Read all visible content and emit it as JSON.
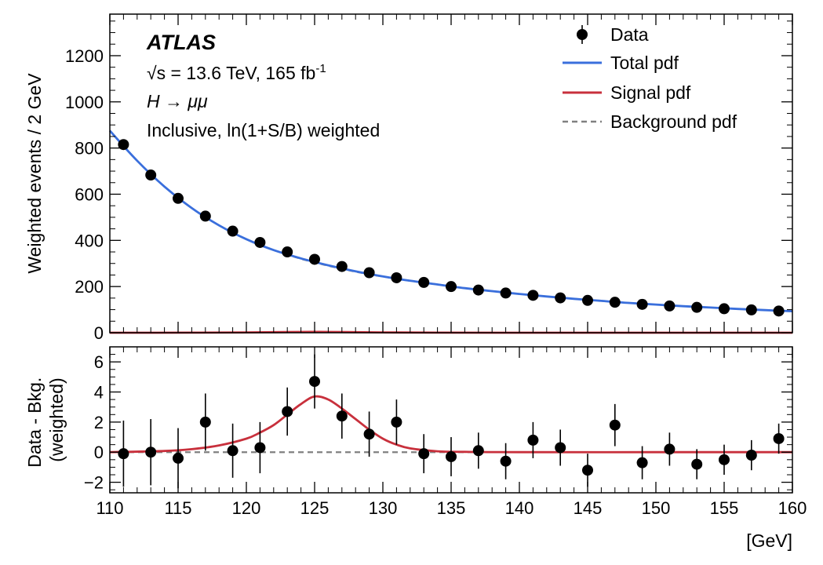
{
  "chart_data": [
    {
      "type": "scatter",
      "panel": "main",
      "title": "",
      "xlabel": "",
      "ylabel": "Weighted events / 2 GeV",
      "xlim": [
        110,
        160
      ],
      "ylim": [
        0,
        1380
      ],
      "yticks": [
        0,
        200,
        400,
        600,
        800,
        1000,
        1200
      ],
      "ytick_labels": [
        "0",
        "200",
        "400",
        "600",
        "800",
        "1000",
        "1200"
      ],
      "series": [
        {
          "name": "Data",
          "color": "#000000",
          "x": [
            111,
            113,
            115,
            117,
            119,
            121,
            123,
            125,
            127,
            129,
            131,
            133,
            135,
            137,
            139,
            141,
            143,
            145,
            147,
            149,
            151,
            153,
            155,
            157,
            159
          ],
          "y": [
            815,
            683,
            582,
            505,
            440,
            391,
            350,
            318,
            287,
            260,
            238,
            218,
            200,
            185,
            172,
            162,
            151,
            140,
            132,
            123,
            116,
            110,
            104,
            99,
            94
          ]
        },
        {
          "name": "Total pdf",
          "color": "#3a6fdc",
          "x": [
            110,
            112,
            114,
            116,
            118,
            120,
            122,
            124,
            126,
            128,
            130,
            132,
            134,
            136,
            138,
            140,
            142,
            144,
            146,
            148,
            150,
            152,
            154,
            156,
            158,
            160
          ],
          "y": [
            875,
            745,
            633,
            540,
            465,
            405,
            358,
            322,
            292,
            266,
            244,
            225,
            209,
            193,
            180,
            168,
            157,
            147,
            138,
            129,
            122,
            115,
            109,
            103,
            98,
            93
          ]
        },
        {
          "name": "Signal pdf",
          "color": "#c8303c",
          "x": [
            110,
            116,
            120,
            122,
            124,
            125,
            126,
            128,
            130,
            134,
            140,
            150,
            160
          ],
          "y": [
            0,
            0.3,
            1.2,
            2.5,
            3.4,
            3.7,
            3.4,
            2.5,
            1.2,
            0.3,
            0,
            0,
            0
          ]
        },
        {
          "name": "Background pdf",
          "color": "#808080",
          "dashed": true,
          "x": [
            110,
            112,
            114,
            116,
            118,
            120,
            122,
            124,
            126,
            128,
            130,
            132,
            134,
            136,
            138,
            140,
            142,
            144,
            146,
            148,
            150,
            152,
            154,
            156,
            158,
            160
          ],
          "y": [
            875,
            745,
            633,
            540,
            465,
            405,
            358,
            320,
            290,
            264,
            243,
            225,
            209,
            193,
            180,
            168,
            157,
            147,
            138,
            129,
            122,
            115,
            109,
            103,
            98,
            93
          ]
        }
      ],
      "annotations": {
        "experiment": "ATLAS",
        "line1": "√s = 13.6 TeV, 165 fb",
        "line1_sup": "-1",
        "line2": "H → μμ",
        "line3": "Inclusive, ln(1+S/B) weighted"
      },
      "legend": {
        "placement": "top-right",
        "entries": [
          "Data",
          "Total pdf",
          "Signal pdf",
          "Background pdf"
        ]
      }
    },
    {
      "type": "scatter",
      "panel": "ratio",
      "xlabel": "[GeV]",
      "ylabel": "Data - Bkg. (weighted)",
      "ylabel_line1": "Data - Bkg.",
      "ylabel_line2": "(weighted)",
      "xlim": [
        110,
        160
      ],
      "ylim": [
        -2.7,
        7.0
      ],
      "xticks": [
        110,
        115,
        120,
        125,
        130,
        135,
        140,
        145,
        150,
        155,
        160
      ],
      "xtick_labels": [
        "110",
        "115",
        "120",
        "125",
        "130",
        "135",
        "140",
        "145",
        "150",
        "155",
        "160"
      ],
      "yticks": [
        -2,
        0,
        2,
        4,
        6
      ],
      "ytick_labels": [
        "−2",
        "0",
        "2",
        "4",
        "6"
      ],
      "series": [
        {
          "name": "Data",
          "color": "#000000",
          "x": [
            111,
            113,
            115,
            117,
            119,
            121,
            123,
            125,
            127,
            129,
            131,
            133,
            135,
            137,
            139,
            141,
            143,
            145,
            147,
            149,
            151,
            153,
            155,
            157,
            159
          ],
          "y": [
            -0.1,
            0.0,
            -0.4,
            2.0,
            0.1,
            0.3,
            2.7,
            4.7,
            2.4,
            1.2,
            2.0,
            -0.1,
            -0.3,
            0.1,
            -0.6,
            0.8,
            0.3,
            -1.2,
            1.8,
            -0.7,
            0.2,
            -0.8,
            -0.5,
            -0.2,
            0.9
          ],
          "yerr": [
            2.2,
            2.2,
            2.0,
            1.9,
            1.8,
            1.7,
            1.6,
            1.8,
            1.5,
            1.5,
            1.5,
            1.3,
            1.3,
            1.2,
            1.2,
            1.2,
            1.2,
            1.1,
            1.4,
            1.1,
            1.1,
            1.0,
            1.0,
            1.0,
            1.0
          ]
        },
        {
          "name": "Signal pdf",
          "color": "#c8303c",
          "x": [
            110,
            114,
            116,
            118,
            120,
            121,
            122,
            123,
            124,
            125,
            126,
            127,
            128,
            129,
            130,
            131,
            132,
            134,
            136,
            140,
            150,
            160
          ],
          "y": [
            0.0,
            0.08,
            0.2,
            0.45,
            0.9,
            1.3,
            1.8,
            2.5,
            3.2,
            3.7,
            3.5,
            2.9,
            2.2,
            1.5,
            0.9,
            0.5,
            0.25,
            0.06,
            0.02,
            0.0,
            0.0,
            0.0
          ]
        },
        {
          "name": "Background pdf",
          "color": "#808080",
          "dashed": true,
          "x": [
            110,
            160
          ],
          "y": [
            0,
            0
          ]
        }
      ]
    }
  ]
}
